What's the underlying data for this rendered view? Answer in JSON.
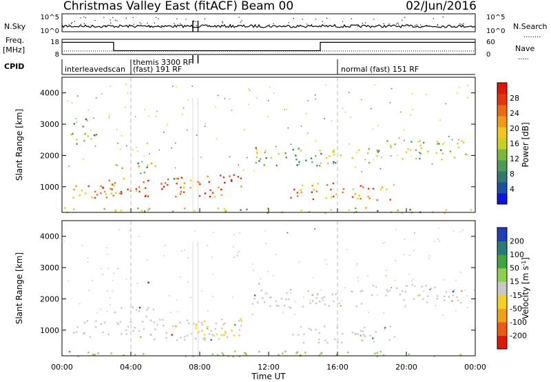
{
  "header": {
    "title": "Christmas Valley East (fitACF)",
    "beam": "Beam 00",
    "date": "02/Jun/2016"
  },
  "noise_panel": {
    "left_label": "N.Sky",
    "right_label": "N.Search",
    "left_ticks": [
      "10^5",
      "10^0"
    ],
    "right_ticks": [
      "10^5",
      "10^0"
    ]
  },
  "freq_panel": {
    "left_label_line1": "Freq.",
    "left_label_line2": "[MHz]",
    "left_ticks": [
      "18",
      "8"
    ],
    "right_label": "Nave",
    "right_ticks": [
      "60",
      "0"
    ],
    "freq_steps": [
      {
        "start_hr": 0,
        "end_hr": 3,
        "freq_mhz": 16
      },
      {
        "start_hr": 3,
        "end_hr": 15,
        "freq_mhz": 10.5
      },
      {
        "start_hr": 15,
        "end_hr": 24,
        "freq_mhz": 16
      }
    ]
  },
  "cpid": {
    "label": "CPID",
    "modes": [
      {
        "text": "interleavedscan",
        "start_hr": 0
      },
      {
        "text": "themis 3300 RF",
        "start_hr": 4
      },
      {
        "text": "(fast) 191 RF",
        "start_hr": 4
      },
      {
        "text": "normal (fast) 151 RF",
        "start_hr": 16
      }
    ]
  },
  "x_axis": {
    "label": "Time UT",
    "ticks": [
      "00:00",
      "04:00",
      "08:00",
      "12:00",
      "16:00",
      "20:00",
      "00:00"
    ],
    "range_hr": [
      0,
      24
    ]
  },
  "power_panel": {
    "ylabel": "Slant Range [km]",
    "yticks": [
      "1000",
      "2000",
      "3000",
      "4000"
    ],
    "colorbar_label": "Power [dB]",
    "colorbar_ticks": [
      "4",
      "8",
      "12",
      "16",
      "20",
      "24",
      "28"
    ],
    "colors": [
      "#0a14e6",
      "#1f4ea8",
      "#2f7a6a",
      "#4e9a55",
      "#7bb83a",
      "#c8d21e",
      "#f2c818",
      "#f59a0e",
      "#ef6a0e",
      "#e8330a",
      "#e0140a"
    ]
  },
  "velocity_panel": {
    "ylabel": "Slant Range [km]",
    "yticks": [
      "1000",
      "2000",
      "3000",
      "4000"
    ],
    "colorbar_label": "Velocity [m s^-1]",
    "colorbar_ticks": [
      "200",
      "100",
      "50",
      "15",
      "-15",
      "-50",
      "-100",
      "-200"
    ],
    "colors": [
      "#1e3fb8",
      "#2a7a78",
      "#3ea640",
      "#8ad04a",
      "#c8c8c8",
      "#f5d020",
      "#f5a010",
      "#ee5a10",
      "#e01808"
    ]
  },
  "chart_data": [
    {
      "type": "heatmap",
      "title": "Christmas Valley East (fitACF)",
      "xlabel": "Time UT",
      "ylabel": "Slant Range [km]",
      "colorbar": "Power [dB]",
      "xlim": [
        0,
        24
      ],
      "ylim": [
        180,
        4500
      ],
      "zlim": [
        0,
        30
      ],
      "echo_regions": [
        {
          "t0": 0.5,
          "t1": 3.5,
          "r0": 600,
          "r1": 1300,
          "power_db": 22
        },
        {
          "t0": 2.5,
          "t1": 10.5,
          "r0": 700,
          "r1": 1400,
          "power_db": 24
        },
        {
          "t0": 3.0,
          "t1": 5.5,
          "r0": 1450,
          "r1": 1800,
          "power_db": 14
        },
        {
          "t0": 6.0,
          "t1": 7.5,
          "r0": 1200,
          "r1": 1400,
          "power_db": 12
        },
        {
          "t0": 4.5,
          "t1": 5.0,
          "r0": 2400,
          "r1": 2650,
          "power_db": 20
        },
        {
          "t0": 11.0,
          "t1": 18.0,
          "r0": 1700,
          "r1": 2300,
          "power_db": 12
        },
        {
          "t0": 13.0,
          "t1": 19.5,
          "r0": 600,
          "r1": 1150,
          "power_db": 22
        },
        {
          "t0": 18.0,
          "t1": 23.5,
          "r0": 1900,
          "r1": 2500,
          "power_db": 14
        },
        {
          "t0": 0.5,
          "t1": 2.0,
          "r0": 2300,
          "r1": 3200,
          "power_db": 10
        },
        {
          "t0": 0.0,
          "t1": 24.0,
          "r0": 180,
          "r1": 350,
          "power_db": 14
        }
      ]
    },
    {
      "type": "heatmap",
      "title": "",
      "xlabel": "Time UT",
      "ylabel": "Slant Range [km]",
      "colorbar": "Velocity [m s^-1]",
      "xlim": [
        0,
        24
      ],
      "ylim": [
        180,
        4500
      ],
      "zlim": [
        -250,
        250
      ],
      "echo_regions": [
        {
          "t0": 0.5,
          "t1": 10.5,
          "r0": 700,
          "r1": 1400,
          "velocity": 0
        },
        {
          "t0": 7.5,
          "t1": 10.5,
          "r0": 800,
          "r1": 1400,
          "velocity": -40
        },
        {
          "t0": 3.0,
          "t1": 5.5,
          "r0": 1450,
          "r1": 1800,
          "velocity": 0
        },
        {
          "t0": 4.5,
          "t1": 5.0,
          "r0": 2400,
          "r1": 2650,
          "velocity": 150
        },
        {
          "t0": 11.0,
          "t1": 18.0,
          "r0": 1700,
          "r1": 2300,
          "velocity": 0
        },
        {
          "t0": 13.0,
          "t1": 19.5,
          "r0": 600,
          "r1": 1150,
          "velocity": 0
        },
        {
          "t0": 18.0,
          "t1": 23.5,
          "r0": 1900,
          "r1": 2500,
          "velocity": 0
        },
        {
          "t0": 0.0,
          "t1": 24.0,
          "r0": 180,
          "r1": 350,
          "velocity": 20
        }
      ]
    }
  ]
}
